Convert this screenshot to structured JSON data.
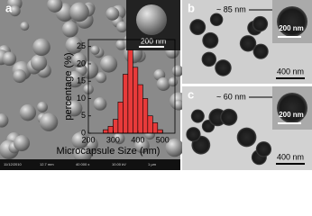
{
  "panels": {
    "a": {
      "label": "a",
      "inset_scale": "200 nm",
      "info_bar": [
        "11/12/2010",
        "12.7 mm",
        "40 000 x",
        "10.00 kV",
        "1 µm"
      ]
    },
    "b": {
      "label": "b",
      "shell": "~ 85 nm",
      "inset_scale": "200 nm",
      "scale": "400 nm"
    },
    "c": {
      "label": "c",
      "shell": "~ 60 nm",
      "inset_scale": "200 nm",
      "scale": "400 nm"
    }
  },
  "chart_data": {
    "type": "histogram",
    "x_label": "Microcapsule Size (nm)",
    "y_label": "percentage (%)",
    "bins": [
      260,
      280,
      300,
      320,
      340,
      360,
      380,
      400,
      420,
      440,
      460,
      480,
      500
    ],
    "values": [
      1,
      2,
      4,
      9,
      17,
      24,
      19,
      14,
      10,
      5,
      3,
      1
    ],
    "color": "#e83a3a",
    "xlim": [
      200,
      550
    ],
    "xticks": [
      200,
      300,
      400,
      500
    ],
    "ylim": [
      0,
      27
    ],
    "yticks": [
      0,
      5,
      10,
      15,
      20,
      25
    ]
  }
}
